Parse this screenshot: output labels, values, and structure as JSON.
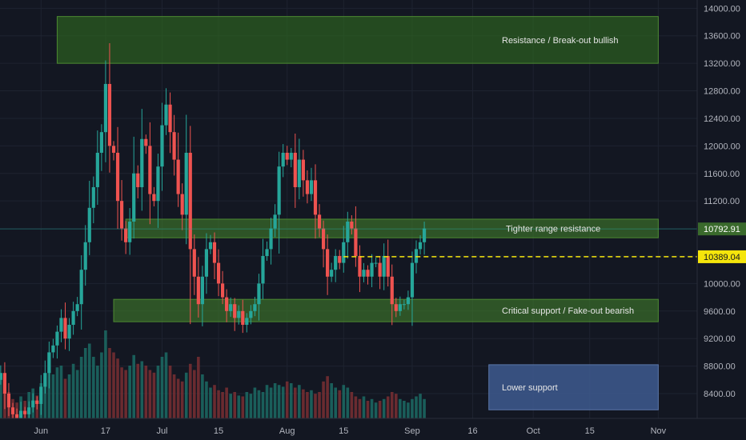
{
  "chart_data": {
    "type": "candlestick",
    "x_ticks": [
      "Jun",
      "17",
      "Jul",
      "15",
      "Aug",
      "15",
      "Sep",
      "16",
      "Oct",
      "15",
      "Nov"
    ],
    "y_ticks": [
      "14000.00",
      "13600.00",
      "13200.00",
      "12800.00",
      "12400.00",
      "12000.00",
      "11600.00",
      "11200.00",
      "10800.00",
      "10400.00",
      "10000.00",
      "9600.00",
      "9200.00",
      "8800.00",
      "8400.00"
    ],
    "y_tick_values": [
      14000,
      13600,
      13200,
      12800,
      12400,
      12000,
      11600,
      11200,
      10800,
      10400,
      10000,
      9600,
      9200,
      8800,
      8400
    ],
    "ylim": [
      8040,
      14120
    ],
    "first_date": "2019-05-25",
    "last_date": "2019-09-04",
    "closes": [
      8000,
      8050,
      8100,
      8200,
      8500,
      8300,
      8400,
      8600,
      8700,
      8400,
      8200,
      8100,
      8000,
      8150,
      8100,
      8200,
      8300,
      8250,
      8500,
      8700,
      9000,
      9100,
      9300,
      9500,
      9200,
      9400,
      9600,
      9700,
      10200,
      10600,
      11100,
      11400,
      11900,
      12200,
      12900,
      12000,
      11900,
      11200,
      10800,
      10600,
      10900,
      11600,
      11400,
      12100,
      12000,
      11300,
      11200,
      11700,
      12300,
      12600,
      12200,
      11800,
      11300,
      11000,
      11900,
      10500,
      10100,
      9700,
      10100,
      10500,
      10600,
      10300,
      10000,
      9800,
      9600,
      9700,
      9500,
      9600,
      9400,
      9500,
      9600,
      9700,
      10000,
      10400,
      10500,
      10800,
      11000,
      11700,
      11900,
      11800,
      11900,
      11400,
      11800,
      11500,
      11300,
      11500,
      11000,
      10800,
      10500,
      10100,
      10200,
      10400,
      10300,
      10600,
      10900,
      10800,
      10400,
      10100,
      10200,
      10100,
      10300,
      10300,
      10100,
      10400,
      10100,
      9700,
      9600,
      9700,
      9700,
      9800,
      10300,
      10500,
      10600,
      10800
    ],
    "volumes": [
      0.14,
      0.12,
      0.15,
      0.22,
      0.45,
      0.28,
      0.35,
      0.42,
      0.5,
      0.38,
      0.3,
      0.22,
      0.18,
      0.25,
      0.2,
      0.3,
      0.34,
      0.26,
      0.4,
      0.48,
      0.55,
      0.5,
      0.58,
      0.6,
      0.45,
      0.5,
      0.62,
      0.55,
      0.7,
      0.8,
      0.85,
      0.7,
      0.6,
      0.75,
      1.0,
      0.8,
      0.75,
      0.68,
      0.58,
      0.55,
      0.6,
      0.72,
      0.62,
      0.65,
      0.6,
      0.55,
      0.52,
      0.6,
      0.7,
      0.75,
      0.6,
      0.5,
      0.45,
      0.42,
      0.52,
      0.62,
      0.55,
      0.7,
      0.5,
      0.42,
      0.35,
      0.38,
      0.32,
      0.3,
      0.35,
      0.28,
      0.3,
      0.26,
      0.25,
      0.3,
      0.28,
      0.35,
      0.32,
      0.3,
      0.38,
      0.35,
      0.4,
      0.38,
      0.36,
      0.42,
      0.4,
      0.35,
      0.38,
      0.33,
      0.3,
      0.32,
      0.28,
      0.3,
      0.42,
      0.48,
      0.4,
      0.35,
      0.32,
      0.38,
      0.35,
      0.3,
      0.25,
      0.22,
      0.25,
      0.2,
      0.22,
      0.18,
      0.2,
      0.22,
      0.25,
      0.3,
      0.28,
      0.22,
      0.2,
      0.18,
      0.22,
      0.25,
      0.28,
      0.22
    ],
    "grid": true,
    "up_color": "#26a69a",
    "down_color": "#ef5350",
    "zones": [
      {
        "label": "Resistance / Break-out bullish",
        "y_top": 13880,
        "y_bottom": 13200,
        "x_start": "2019-06-05",
        "x_end": "2019-11-01",
        "color": "#2f6b1f"
      },
      {
        "label": "Tighter range resistance",
        "y_top": 10935,
        "y_bottom": 10665,
        "x_start": "2019-06-22",
        "x_end": "2019-11-01",
        "color": "#3f7a2a"
      },
      {
        "label": "Critical support / Fake-out bearish",
        "y_top": 9770,
        "y_bottom": 9445,
        "x_start": "2019-06-19",
        "x_end": "2019-11-01",
        "color": "#3f7a2a"
      },
      {
        "label": "Lower support",
        "y_top": 8820,
        "y_bottom": 8165,
        "x_start": "2019-09-20",
        "x_end": "2019-11-01",
        "color": "#3e5a8f"
      }
    ],
    "dashed_line": {
      "value": 10389.04,
      "x_start": "2019-08-15",
      "color": "#f5e50b"
    },
    "price_labels": [
      {
        "value": 10792.91,
        "text": "10792.91",
        "bg": "#3a6a2c",
        "color": "#ffffff"
      },
      {
        "value": 10389.04,
        "text": "10389.04",
        "bg": "#f5e50b",
        "color": "#131722"
      }
    ],
    "crosshair_value": 10792.91
  }
}
